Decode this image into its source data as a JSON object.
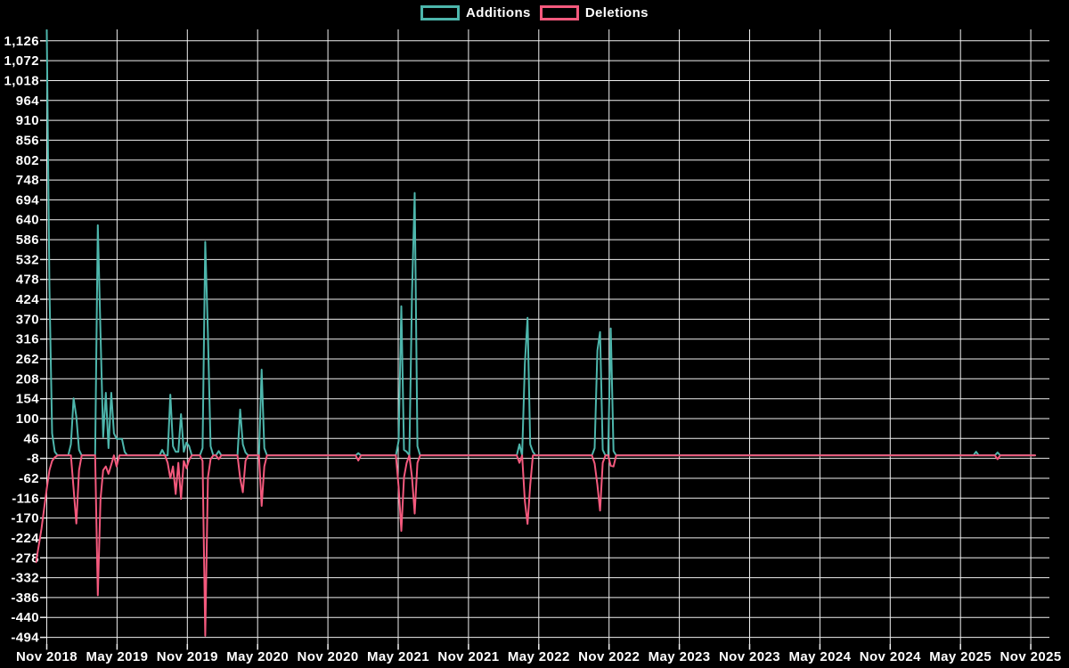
{
  "legend": [
    {
      "label": "Additions",
      "color": "#4db6ac"
    },
    {
      "label": "Deletions",
      "color": "#f4597d"
    }
  ],
  "chart_data": {
    "type": "line",
    "title": "",
    "xlabel": "",
    "ylabel": "",
    "background": "#000000",
    "grid": true,
    "grid_color": "#f0f0f0",
    "legend_position": "top",
    "x_unit": "week",
    "weeks_total": 368,
    "ylim": [
      -512,
      1157
    ],
    "y_tick_start": 1126,
    "y_tick_step": -54,
    "y_tick_labels": [
      "1,126",
      "1,072",
      "1,018",
      "964",
      "910",
      "856",
      "802",
      "748",
      "694",
      "640",
      "586",
      "532",
      "478",
      "424",
      "370",
      "316",
      "262",
      "208",
      "154",
      "100",
      "46",
      "-8",
      "-62",
      "-116",
      "-170",
      "-224",
      "-278",
      "-332",
      "-386",
      "-440",
      "-494"
    ],
    "x_tick_labels": [
      "Nov 2018",
      "May 2019",
      "Nov 2019",
      "May 2020",
      "Nov 2020",
      "May 2021",
      "Nov 2021",
      "May 2022",
      "Nov 2022",
      "May 2023",
      "Nov 2023",
      "May 2024",
      "Nov 2024",
      "May 2025",
      "Nov 2025"
    ],
    "series": [
      {
        "name": "Additions",
        "color": "#4db6ac",
        "points": [
          [
            0,
            1155
          ],
          [
            1,
            455
          ],
          [
            2,
            60
          ],
          [
            3,
            10
          ],
          [
            4,
            0
          ],
          [
            9,
            30
          ],
          [
            10,
            155
          ],
          [
            11,
            105
          ],
          [
            12,
            15
          ],
          [
            13,
            0
          ],
          [
            18,
            0
          ],
          [
            19,
            625
          ],
          [
            20,
            335
          ],
          [
            21,
            50
          ],
          [
            22,
            170
          ],
          [
            23,
            20
          ],
          [
            24,
            170
          ],
          [
            25,
            60
          ],
          [
            26,
            45
          ],
          [
            27,
            45
          ],
          [
            28,
            45
          ],
          [
            29,
            10
          ],
          [
            30,
            0
          ],
          [
            43,
            15
          ],
          [
            44,
            0
          ],
          [
            45,
            0
          ],
          [
            46,
            165
          ],
          [
            47,
            25
          ],
          [
            48,
            10
          ],
          [
            49,
            10
          ],
          [
            50,
            112
          ],
          [
            51,
            10
          ],
          [
            52,
            35
          ],
          [
            53,
            25
          ],
          [
            54,
            0
          ],
          [
            58,
            20
          ],
          [
            59,
            580
          ],
          [
            60,
            330
          ],
          [
            61,
            25
          ],
          [
            62,
            0
          ],
          [
            64,
            12
          ],
          [
            65,
            0
          ],
          [
            71,
            0
          ],
          [
            72,
            125
          ],
          [
            73,
            30
          ],
          [
            74,
            8
          ],
          [
            75,
            0
          ],
          [
            79,
            0
          ],
          [
            80,
            233
          ],
          [
            81,
            20
          ],
          [
            82,
            0
          ],
          [
            115,
            0
          ],
          [
            116,
            6
          ],
          [
            117,
            0
          ],
          [
            131,
            40
          ],
          [
            132,
            405
          ],
          [
            133,
            15
          ],
          [
            134,
            10
          ],
          [
            135,
            0
          ],
          [
            136,
            440
          ],
          [
            137,
            713
          ],
          [
            138,
            25
          ],
          [
            139,
            0
          ],
          [
            176,
            30
          ],
          [
            177,
            0
          ],
          [
            178,
            250
          ],
          [
            179,
            374
          ],
          [
            180,
            30
          ],
          [
            181,
            10
          ],
          [
            182,
            0
          ],
          [
            204,
            20
          ],
          [
            205,
            285
          ],
          [
            206,
            335
          ],
          [
            207,
            15
          ],
          [
            208,
            0
          ],
          [
            209,
            0
          ],
          [
            210,
            345
          ],
          [
            211,
            12
          ],
          [
            212,
            0
          ],
          [
            345,
            0
          ],
          [
            346,
            10
          ],
          [
            347,
            0
          ],
          [
            353,
            0
          ],
          [
            354,
            8
          ],
          [
            355,
            0
          ],
          [
            368,
            0
          ]
        ]
      },
      {
        "name": "Deletions",
        "color": "#f4597d",
        "points": [
          [
            -4,
            -290
          ],
          [
            -3,
            -245
          ],
          [
            -2,
            -200
          ],
          [
            -1,
            -145
          ],
          [
            0,
            -90
          ],
          [
            1,
            -40
          ],
          [
            2,
            -15
          ],
          [
            3,
            -5
          ],
          [
            4,
            0
          ],
          [
            9,
            0
          ],
          [
            10,
            -90
          ],
          [
            11,
            -185
          ],
          [
            12,
            -40
          ],
          [
            13,
            0
          ],
          [
            18,
            0
          ],
          [
            19,
            -380
          ],
          [
            20,
            -120
          ],
          [
            21,
            -40
          ],
          [
            22,
            -30
          ],
          [
            23,
            -50
          ],
          [
            24,
            -25
          ],
          [
            25,
            0
          ],
          [
            26,
            -30
          ],
          [
            27,
            0
          ],
          [
            44,
            0
          ],
          [
            45,
            -20
          ],
          [
            46,
            -62
          ],
          [
            47,
            -30
          ],
          [
            48,
            -105
          ],
          [
            49,
            -20
          ],
          [
            50,
            -118
          ],
          [
            51,
            -15
          ],
          [
            52,
            -35
          ],
          [
            53,
            -12
          ],
          [
            54,
            0
          ],
          [
            58,
            -15
          ],
          [
            59,
            -490
          ],
          [
            60,
            -60
          ],
          [
            61,
            -10
          ],
          [
            62,
            0
          ],
          [
            64,
            -10
          ],
          [
            65,
            0
          ],
          [
            71,
            0
          ],
          [
            72,
            -62
          ],
          [
            73,
            -100
          ],
          [
            74,
            -15
          ],
          [
            75,
            0
          ],
          [
            79,
            0
          ],
          [
            80,
            -137
          ],
          [
            81,
            -30
          ],
          [
            82,
            0
          ],
          [
            115,
            0
          ],
          [
            116,
            -14
          ],
          [
            117,
            0
          ],
          [
            131,
            -86
          ],
          [
            132,
            -205
          ],
          [
            133,
            -60
          ],
          [
            134,
            -20
          ],
          [
            135,
            0
          ],
          [
            136,
            -60
          ],
          [
            137,
            -158
          ],
          [
            138,
            -20
          ],
          [
            139,
            0
          ],
          [
            176,
            -20
          ],
          [
            177,
            0
          ],
          [
            178,
            -125
          ],
          [
            179,
            -186
          ],
          [
            180,
            -80
          ],
          [
            181,
            0
          ],
          [
            204,
            -22
          ],
          [
            205,
            -80
          ],
          [
            206,
            -150
          ],
          [
            207,
            -20
          ],
          [
            208,
            0
          ],
          [
            210,
            -28
          ],
          [
            211,
            -30
          ],
          [
            212,
            0
          ],
          [
            353,
            0
          ],
          [
            354,
            -10
          ],
          [
            355,
            0
          ],
          [
            368,
            0
          ]
        ]
      }
    ]
  }
}
